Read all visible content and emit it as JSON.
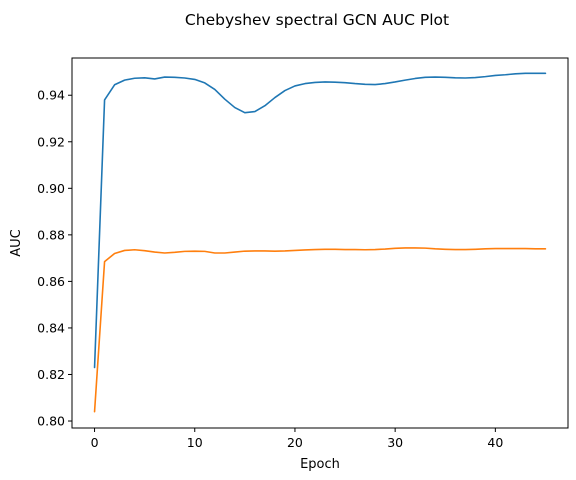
{
  "chart_data": {
    "type": "line",
    "title": "Chebyshev spectral GCN AUC Plot",
    "xlabel": "Epoch",
    "ylabel": "AUC",
    "xlim": [
      -2.25,
      47.25
    ],
    "ylim": [
      0.797,
      0.956
    ],
    "xticks": [
      0,
      10,
      20,
      30,
      40
    ],
    "yticks": [
      0.8,
      0.82,
      0.84,
      0.86,
      0.88,
      0.9,
      0.92,
      0.94
    ],
    "ytick_labels": [
      "0.80",
      "0.82",
      "0.84",
      "0.86",
      "0.88",
      "0.90",
      "0.92",
      "0.94"
    ],
    "grid": false,
    "x": [
      0,
      1,
      2,
      3,
      4,
      5,
      6,
      7,
      8,
      9,
      10,
      11,
      12,
      13,
      14,
      15,
      16,
      17,
      18,
      19,
      20,
      21,
      22,
      23,
      24,
      25,
      26,
      27,
      28,
      29,
      30,
      31,
      32,
      33,
      34,
      35,
      36,
      37,
      38,
      39,
      40,
      41,
      42,
      43,
      44,
      45
    ],
    "series": [
      {
        "color": "#1f77b4",
        "values": [
          0.823,
          0.938,
          0.9445,
          0.9465,
          0.9473,
          0.9475,
          0.947,
          0.9478,
          0.9477,
          0.9474,
          0.9468,
          0.9453,
          0.9425,
          0.9383,
          0.9347,
          0.9325,
          0.933,
          0.9355,
          0.939,
          0.942,
          0.944,
          0.945,
          0.9455,
          0.9457,
          0.9456,
          0.9454,
          0.945,
          0.9447,
          0.9446,
          0.945,
          0.9457,
          0.9465,
          0.9472,
          0.9477,
          0.9478,
          0.9477,
          0.9475,
          0.9474,
          0.9476,
          0.948,
          0.9485,
          0.9488,
          0.9492,
          0.9494,
          0.9494,
          0.9494
        ]
      },
      {
        "color": "#ff7f0e",
        "values": [
          0.804,
          0.8685,
          0.872,
          0.8733,
          0.8736,
          0.8732,
          0.8726,
          0.8722,
          0.8725,
          0.8729,
          0.873,
          0.8729,
          0.8722,
          0.8722,
          0.8726,
          0.873,
          0.8731,
          0.8731,
          0.873,
          0.8731,
          0.8733,
          0.8735,
          0.8737,
          0.8738,
          0.8738,
          0.8737,
          0.8737,
          0.8736,
          0.8737,
          0.8739,
          0.8742,
          0.8744,
          0.8744,
          0.8743,
          0.874,
          0.8738,
          0.8737,
          0.8737,
          0.8738,
          0.874,
          0.8741,
          0.8741,
          0.8741,
          0.8741,
          0.874,
          0.874
        ]
      }
    ]
  }
}
